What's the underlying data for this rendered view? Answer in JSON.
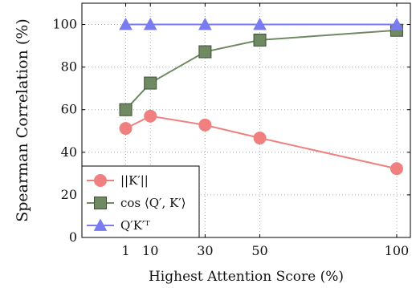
{
  "chart_data": {
    "type": "line",
    "title": "",
    "xlabel": "Highest Attention Score (%)",
    "ylabel": "Spearman Correlation (%)",
    "x": [
      1,
      10,
      30,
      50,
      100
    ],
    "xticks": [
      "1",
      "10",
      "30",
      "50",
      "100"
    ],
    "yticks": [
      "0",
      "20",
      "40",
      "60",
      "80",
      "100"
    ],
    "xlim": [
      -15,
      105
    ],
    "ylim": [
      0,
      110
    ],
    "grid": true,
    "legend_position": "bottom-left",
    "series": [
      {
        "name": "||K′||",
        "marker": "circle",
        "color": "#f08080",
        "values": [
          51.2,
          57.0,
          52.8,
          46.7,
          32.3
        ]
      },
      {
        "name": "cos ⟨Q′, K′⟩",
        "marker": "square",
        "color": "#6f8a63",
        "values": [
          60.0,
          72.5,
          87.2,
          92.7,
          97.3
        ]
      },
      {
        "name": "Q′K′ᵀ",
        "marker": "triangle",
        "color": "#7b7bf0",
        "values": [
          100,
          100,
          100,
          100,
          100
        ]
      }
    ]
  }
}
